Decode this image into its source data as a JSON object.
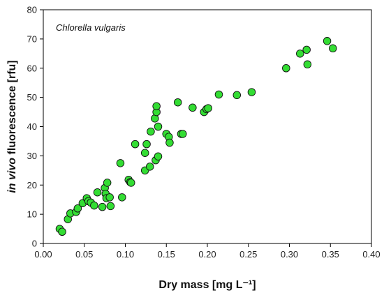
{
  "chart_data": {
    "type": "scatter",
    "title": "",
    "annotation": "Chlorella vulgaris",
    "xlabel": "Dry mass [mg L⁻¹]",
    "ylabel_italic": "in vivo",
    "ylabel_rest": " fluorescence [rfu]",
    "xlim": [
      0,
      0.4
    ],
    "ylim": [
      0,
      80
    ],
    "xticks": [
      "0.00",
      "0.05",
      "0.10",
      "0.15",
      "0.20",
      "0.25",
      "0.30",
      "0.35",
      "0.40"
    ],
    "yticks": [
      "0",
      "10",
      "20",
      "30",
      "40",
      "50",
      "60",
      "70",
      "80"
    ],
    "grid": false,
    "marker_color": "#33dd33",
    "marker_edge": "#111111",
    "points": [
      [
        0.02,
        5.0
      ],
      [
        0.023,
        4.0
      ],
      [
        0.03,
        8.3
      ],
      [
        0.033,
        10.3
      ],
      [
        0.04,
        10.8
      ],
      [
        0.042,
        12.0
      ],
      [
        0.048,
        13.8
      ],
      [
        0.053,
        15.5
      ],
      [
        0.055,
        14.5
      ],
      [
        0.058,
        14.0
      ],
      [
        0.062,
        13.0
      ],
      [
        0.066,
        17.5
      ],
      [
        0.072,
        12.5
      ],
      [
        0.075,
        19.0
      ],
      [
        0.076,
        17.0
      ],
      [
        0.078,
        20.8
      ],
      [
        0.077,
        15.5
      ],
      [
        0.081,
        15.8
      ],
      [
        0.082,
        12.8
      ],
      [
        0.094,
        27.5
      ],
      [
        0.096,
        15.8
      ],
      [
        0.104,
        21.8
      ],
      [
        0.106,
        21.0
      ],
      [
        0.107,
        20.8
      ],
      [
        0.112,
        34.0
      ],
      [
        0.124,
        25.0
      ],
      [
        0.124,
        31.0
      ],
      [
        0.126,
        34.0
      ],
      [
        0.13,
        26.3
      ],
      [
        0.131,
        38.3
      ],
      [
        0.136,
        42.8
      ],
      [
        0.137,
        28.5
      ],
      [
        0.138,
        45.0
      ],
      [
        0.138,
        47.0
      ],
      [
        0.14,
        29.8
      ],
      [
        0.14,
        40.0
      ],
      [
        0.15,
        37.5
      ],
      [
        0.153,
        36.5
      ],
      [
        0.154,
        34.5
      ],
      [
        0.164,
        48.3
      ],
      [
        0.168,
        37.5
      ],
      [
        0.17,
        37.5
      ],
      [
        0.182,
        46.5
      ],
      [
        0.196,
        45.0
      ],
      [
        0.199,
        46.0
      ],
      [
        0.201,
        46.3
      ],
      [
        0.214,
        51.0
      ],
      [
        0.236,
        50.8
      ],
      [
        0.254,
        51.8
      ],
      [
        0.296,
        60.0
      ],
      [
        0.313,
        65.0
      ],
      [
        0.321,
        66.3
      ],
      [
        0.322,
        61.3
      ],
      [
        0.346,
        69.3
      ],
      [
        0.353,
        66.8
      ]
    ]
  }
}
